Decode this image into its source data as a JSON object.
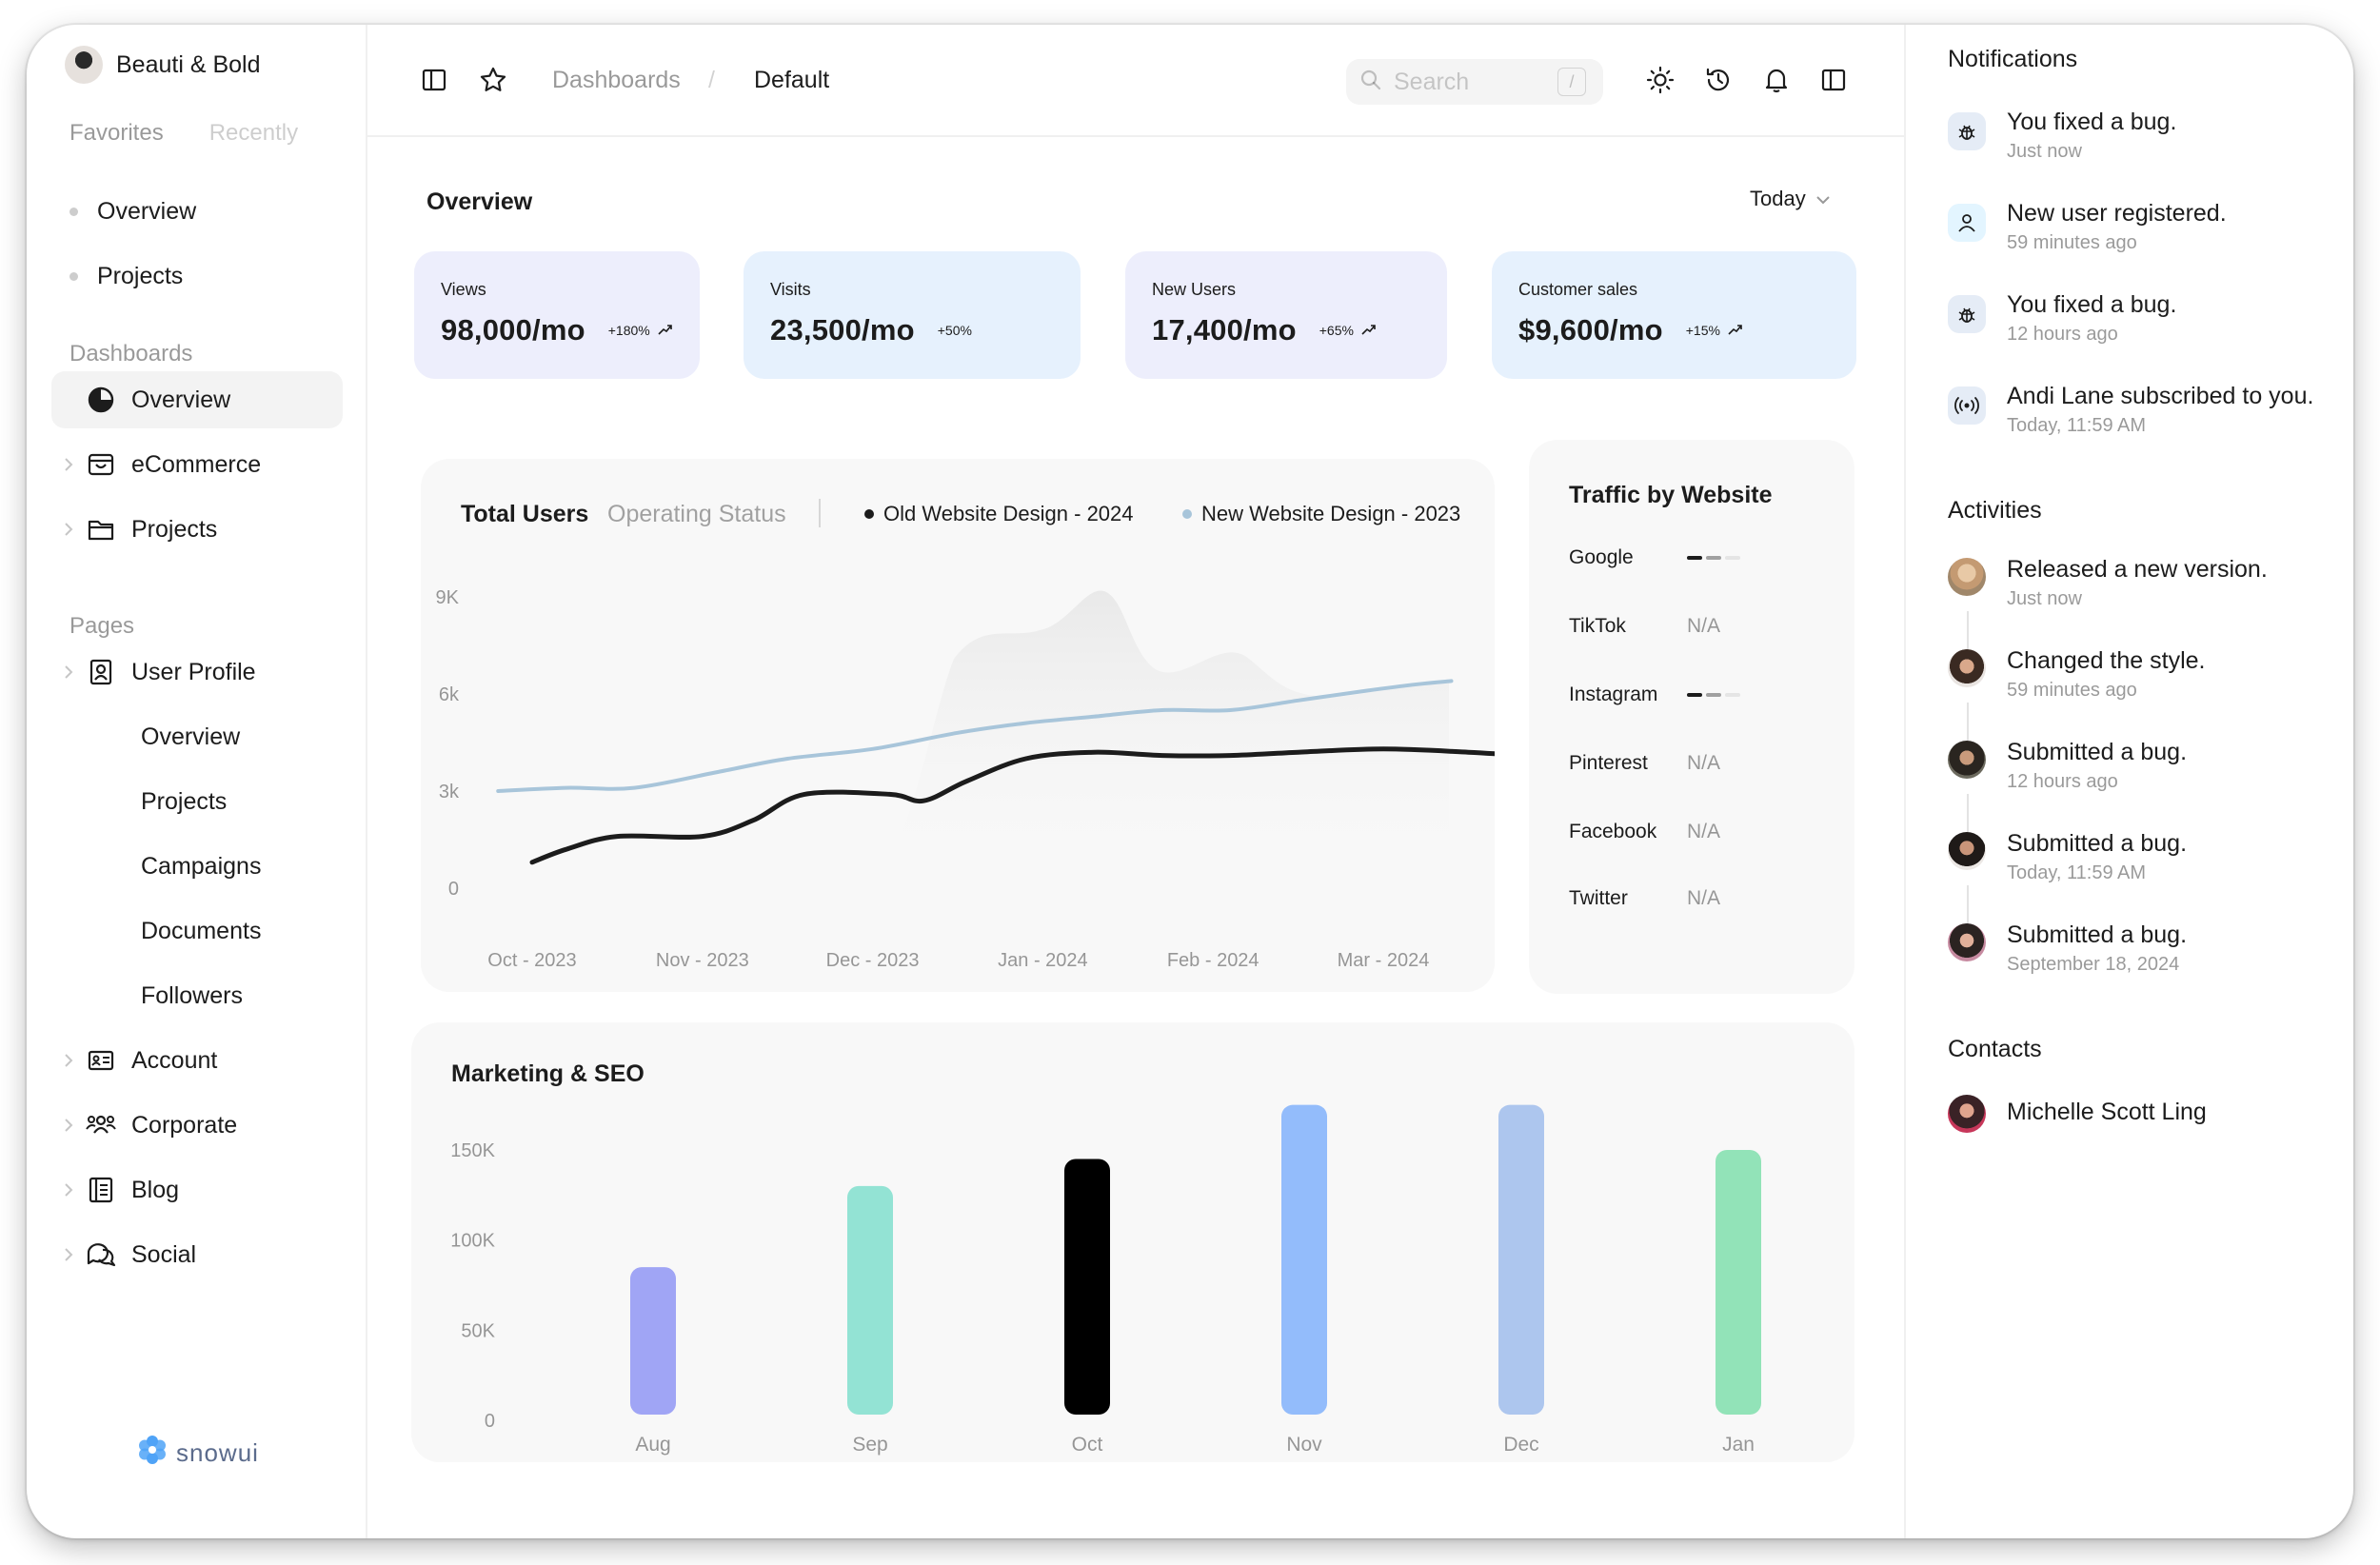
{
  "brand": {
    "name": "Beauti & Bold"
  },
  "sidebar": {
    "tabs": [
      "Favorites",
      "Recently"
    ],
    "favorites": [
      "Overview",
      "Projects"
    ],
    "dashboards_title": "Dashboards",
    "dashboards": [
      {
        "label": "Overview",
        "icon": "pie-chart-icon",
        "active": true
      },
      {
        "label": "eCommerce",
        "icon": "shopping-bag-icon"
      },
      {
        "label": "Projects",
        "icon": "folder-icon"
      }
    ],
    "pages_title": "Pages",
    "pages": {
      "user_profile": "User Profile",
      "user_profile_children": [
        "Overview",
        "Projects",
        "Campaigns",
        "Documents",
        "Followers"
      ],
      "others": [
        {
          "label": "Account",
          "icon": "id-card-icon"
        },
        {
          "label": "Corporate",
          "icon": "users-icon"
        },
        {
          "label": "Blog",
          "icon": "notebook-icon"
        },
        {
          "label": "Social",
          "icon": "chat-bubbles-icon"
        }
      ]
    },
    "logo_text": "snowui"
  },
  "topbar": {
    "breadcrumb": [
      "Dashboards",
      "Default"
    ],
    "breadcrumb_sep": "/",
    "search_placeholder": "Search",
    "search_shortcut": "/"
  },
  "overview": {
    "title": "Overview",
    "range": "Today",
    "stats": [
      {
        "label": "Views",
        "value": "98,000/mo",
        "change": "+180%",
        "trend": "up",
        "bg": "#edeefc"
      },
      {
        "label": "Visits",
        "value": "23,500/mo",
        "change": "+50%",
        "trend": "none",
        "bg": "#e6f1fd"
      },
      {
        "label": "New Users",
        "value": "17,400/mo",
        "change": "+65%",
        "trend": "up",
        "bg": "#edeefc"
      },
      {
        "label": "Customer sales",
        "value": "$9,600/mo",
        "change": "+15%",
        "trend": "up",
        "bg": "#e6f1fd"
      }
    ]
  },
  "total_users": {
    "title": "Total Users",
    "subtitle": "Operating Status",
    "legend": [
      {
        "name": "Old Website Design - 2024",
        "color": "#1c1c1c"
      },
      {
        "name": "New Website Design - 2023",
        "color": "#a8c5da"
      }
    ]
  },
  "traffic": {
    "title": "Traffic by Website",
    "rows": [
      {
        "name": "Google",
        "value": null,
        "bars": 3
      },
      {
        "name": "TikTok",
        "value": "N/A"
      },
      {
        "name": "Instagram",
        "value": null,
        "bars": 3
      },
      {
        "name": "Pinterest",
        "value": "N/A"
      },
      {
        "name": "Facebook",
        "value": "N/A"
      },
      {
        "name": "Twitter",
        "value": "N/A"
      }
    ]
  },
  "marketing": {
    "title": "Marketing & SEO"
  },
  "chart_data": [
    {
      "type": "line",
      "title": "Total Users",
      "x": [
        "Oct - 2023",
        "Nov - 2023",
        "Dec - 2023",
        "Jan - 2024",
        "Feb - 2024",
        "Mar - 2024"
      ],
      "yticks": [
        "0",
        "3k",
        "6k",
        "9K"
      ],
      "ylim": [
        0,
        9000
      ],
      "series": [
        {
          "name": "Old Website Design - 2024",
          "color": "#1c1c1c",
          "points": [
            [
              0,
              800
            ],
            [
              0.2,
              1200
            ],
            [
              0.5,
              1600
            ],
            [
              1.0,
              1600
            ],
            [
              1.3,
              2100
            ],
            [
              1.6,
              2900
            ],
            [
              2.1,
              2900
            ],
            [
              2.3,
              2700
            ],
            [
              2.55,
              3300
            ],
            [
              2.9,
              4000
            ],
            [
              3.3,
              4200
            ],
            [
              3.7,
              4100
            ],
            [
              4.1,
              4100
            ],
            [
              4.5,
              4200
            ],
            [
              5.0,
              4300
            ],
            [
              5.5,
              4200
            ],
            [
              5.8,
              4100
            ]
          ]
        },
        {
          "name": "New Website Design - 2023",
          "color": "#a8c5da",
          "points": [
            [
              -0.2,
              3000
            ],
            [
              0.2,
              3100
            ],
            [
              0.6,
              3100
            ],
            [
              1.1,
              3600
            ],
            [
              1.5,
              4000
            ],
            [
              2.0,
              4300
            ],
            [
              2.5,
              4800
            ],
            [
              2.9,
              5100
            ],
            [
              3.3,
              5300
            ],
            [
              3.7,
              5500
            ],
            [
              4.1,
              5500
            ],
            [
              4.5,
              5800
            ],
            [
              4.9,
              6100
            ],
            [
              5.2,
              6300
            ],
            [
              5.4,
              6400
            ]
          ]
        }
      ]
    },
    {
      "type": "bar",
      "title": "Marketing & SEO",
      "categories": [
        "Aug",
        "Sep",
        "Oct",
        "Nov",
        "Dec",
        "Jan"
      ],
      "values": [
        85000,
        130000,
        145000,
        175000,
        175000,
        150000
      ],
      "colors": [
        "#a0a5f5",
        "#93e3d4",
        "#000000",
        "#93bcfb",
        "#adc6ee",
        "#92e3b8"
      ],
      "yticks": [
        "0",
        "50K",
        "100K",
        "150K"
      ],
      "ylim": [
        0,
        150000
      ]
    }
  ],
  "notifications": {
    "title": "Notifications",
    "items": [
      {
        "text": "You fixed a bug.",
        "time": "Just now",
        "icon": "bug-icon"
      },
      {
        "text": "New user registered.",
        "time": "59 minutes ago",
        "icon": "user-icon"
      },
      {
        "text": "You fixed a bug.",
        "time": "12 hours ago",
        "icon": "bug-icon"
      },
      {
        "text": "Andi Lane subscribed to you.",
        "time": "Today, 11:59 AM",
        "icon": "broadcast-icon"
      }
    ]
  },
  "activities": {
    "title": "Activities",
    "items": [
      {
        "text": "Released a new version.",
        "time": "Just now"
      },
      {
        "text": "Changed the style.",
        "time": "59 minutes ago"
      },
      {
        "text": "Submitted a bug.",
        "time": "12 hours ago"
      },
      {
        "text": "Submitted a bug.",
        "time": "Today, 11:59 AM"
      },
      {
        "text": "Submitted a bug.",
        "time": "September 18, 2024"
      }
    ]
  },
  "contacts": {
    "title": "Contacts",
    "items": [
      {
        "name": "Michelle Scott Ling"
      }
    ]
  }
}
